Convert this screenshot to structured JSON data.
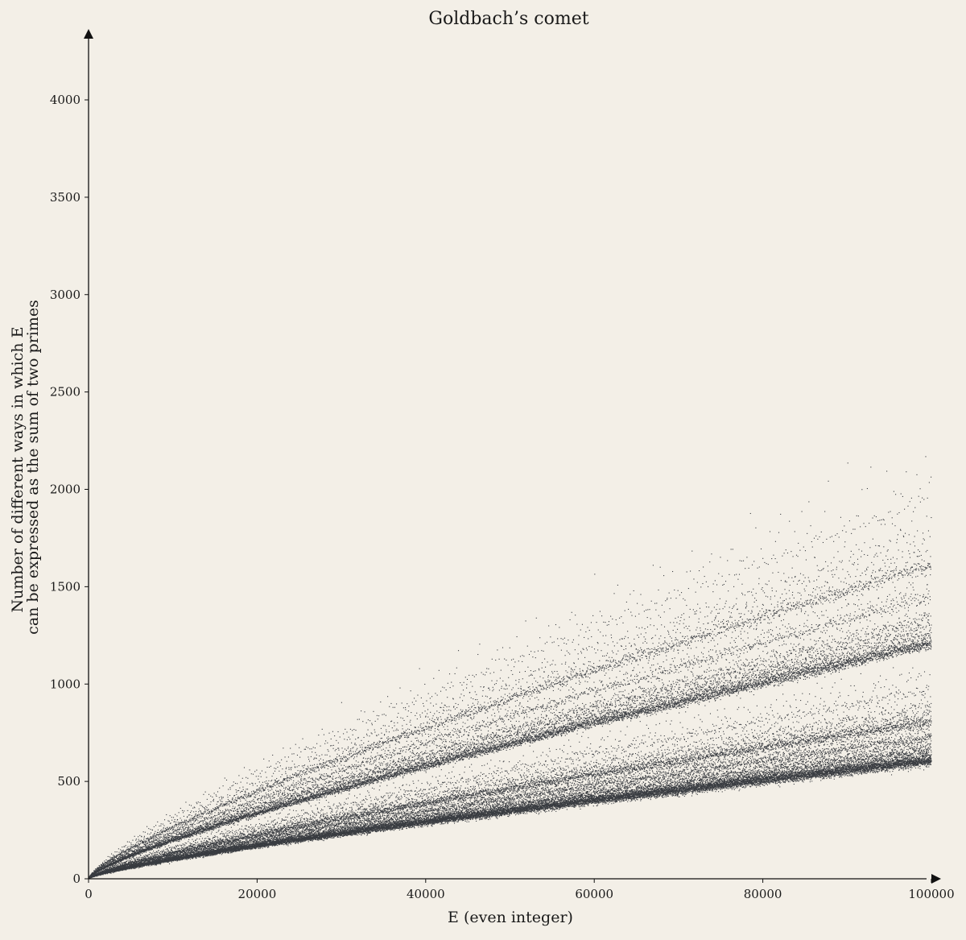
{
  "chart_data": {
    "type": "scatter",
    "title": "Goldbach’s comet",
    "xlabel": "E (even integer)",
    "ylabel": [
      "Number of different ways in which E",
      "can be expressed as the sum of two primes"
    ],
    "xlim": [
      0,
      100000
    ],
    "ylim": [
      0,
      4350
    ],
    "x_ticks": [
      0,
      20000,
      40000,
      60000,
      80000,
      100000
    ],
    "y_ticks": [
      0,
      500,
      1000,
      1500,
      2000,
      2500,
      3000,
      3500,
      4000
    ],
    "grid": false,
    "legend": "none",
    "series_note": "one point per even integer E from 4 to 100000; y = number of prime pairs p + q = E with p <= q",
    "colors": {
      "background": "#f3efe7",
      "points": "#3a3d42",
      "axes": "#111111"
    }
  }
}
